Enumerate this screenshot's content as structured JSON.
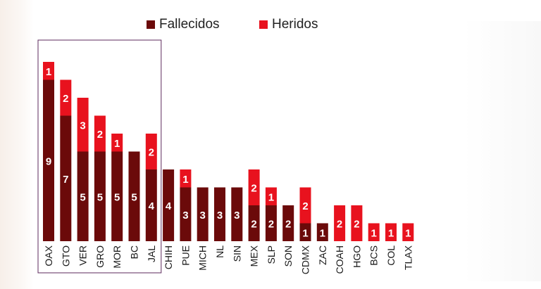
{
  "legend": {
    "fallecidos": "Fallecidos",
    "heridos": "Heridos"
  },
  "colors": {
    "fallecidos": "#6b0a0a",
    "heridos": "#e8121e",
    "highlight_box": "#5e2a5c",
    "label_text": "#ffffff",
    "tick_text": "#1a1a1a"
  },
  "chart_data": {
    "type": "bar",
    "stacked": true,
    "categories": [
      "OAX",
      "GTO",
      "VER",
      "GRO",
      "MOR",
      "BC",
      "JAL",
      "CHIH",
      "PUE",
      "MICH",
      "NL",
      "SIN",
      "MEX",
      "SLP",
      "SON",
      "CDMX",
      "ZAC",
      "COAH",
      "HGO",
      "BCS",
      "COL",
      "TLAX"
    ],
    "series": [
      {
        "name": "Fallecidos",
        "values": [
          9,
          7,
          5,
          5,
          5,
          5,
          4,
          4,
          3,
          3,
          3,
          3,
          2,
          2,
          2,
          1,
          1,
          0,
          0,
          0,
          0,
          0
        ]
      },
      {
        "name": "Heridos",
        "values": [
          1,
          2,
          3,
          2,
          1,
          0,
          2,
          0,
          1,
          0,
          0,
          0,
          2,
          1,
          0,
          2,
          0,
          2,
          2,
          1,
          1,
          1
        ]
      }
    ],
    "legend_position": "top",
    "grid": false,
    "highlighted_categories": [
      "OAX",
      "GTO",
      "VER",
      "GRO",
      "MOR",
      "BC",
      "JAL"
    ],
    "ylim": [
      0,
      10
    ]
  }
}
